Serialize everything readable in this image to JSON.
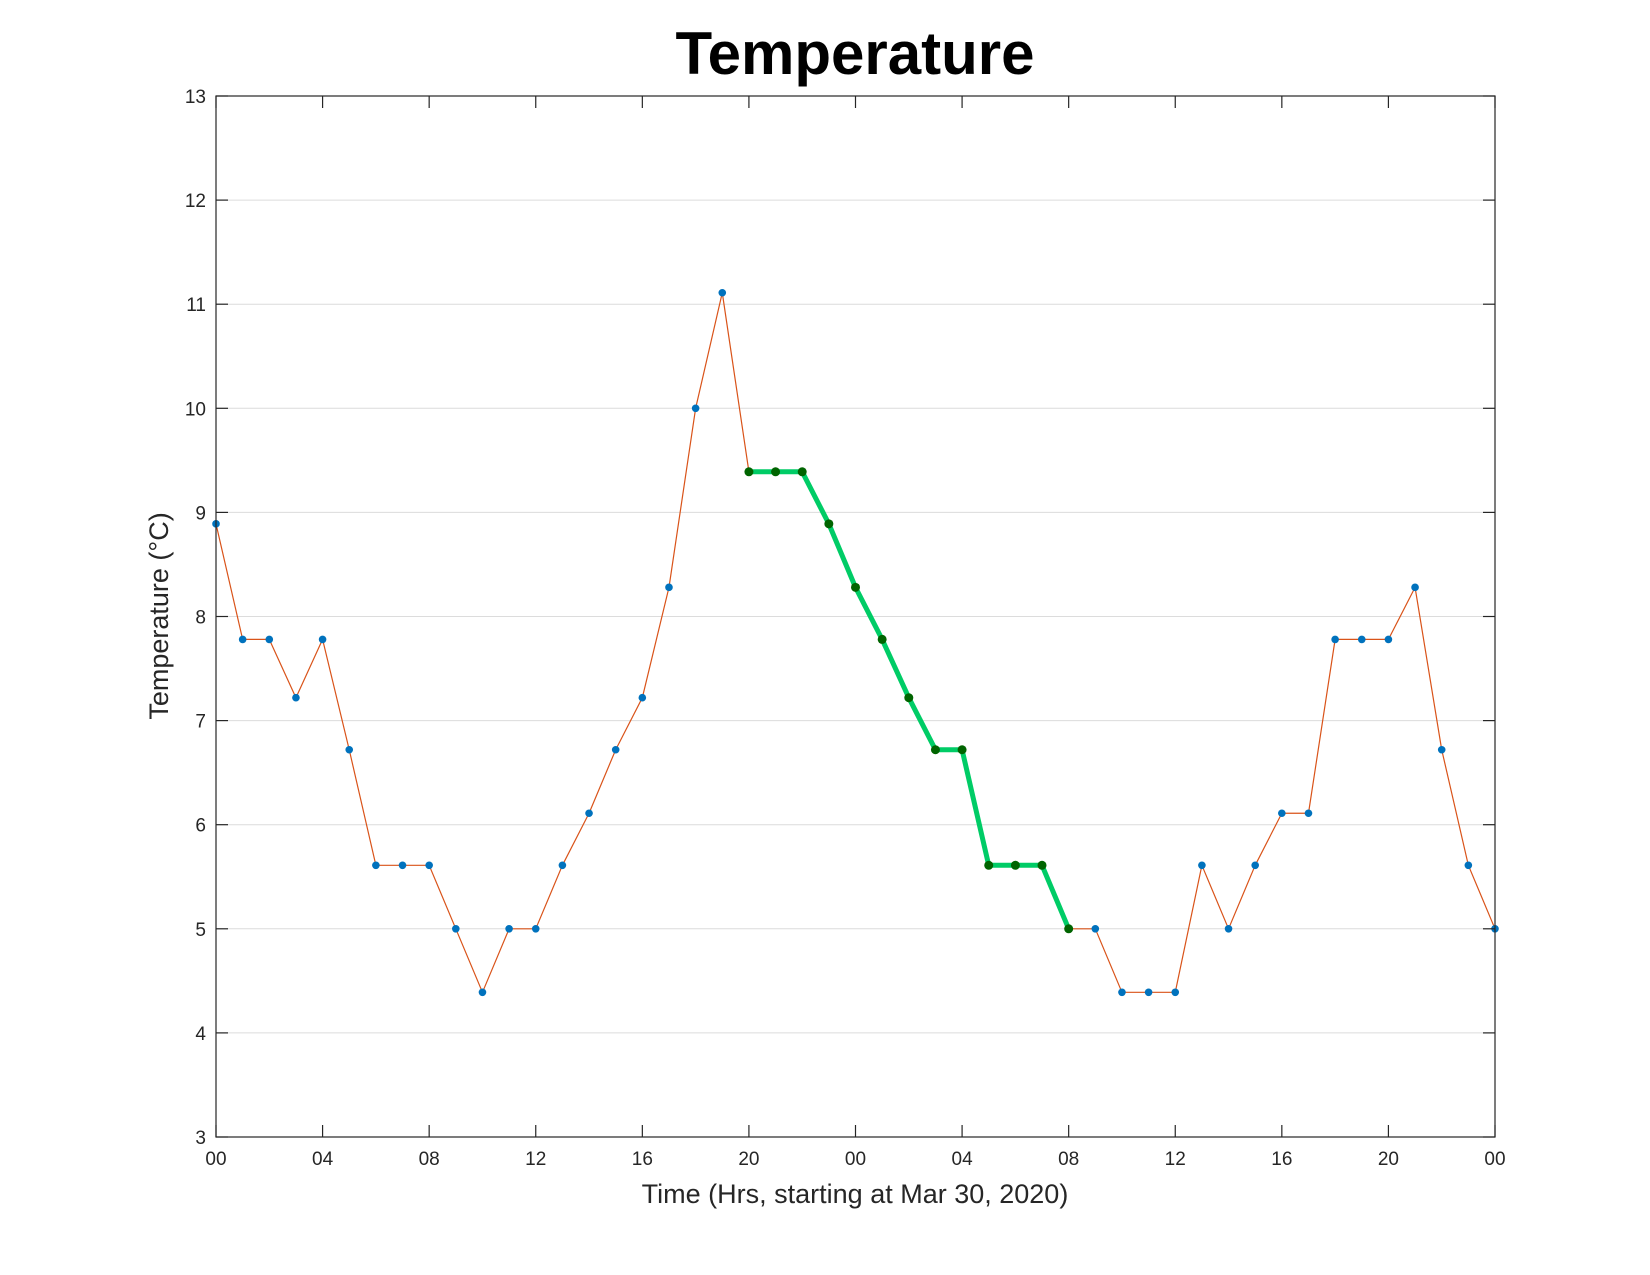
{
  "chart_data": {
    "type": "line",
    "title": "Temperature",
    "xlabel": "Time (Hrs, starting at Mar 30, 2020)",
    "ylabel": "Temperature (°C)",
    "x_start": "2020-03-30 00:00",
    "x_step_hours": 1,
    "xlim_hours": [
      0,
      48
    ],
    "ylim": [
      3,
      13
    ],
    "yticks": [
      3,
      4,
      5,
      6,
      7,
      8,
      9,
      10,
      11,
      12,
      13
    ],
    "xtick_labels": [
      "00",
      "04",
      "08",
      "12",
      "16",
      "20",
      "00",
      "04",
      "08",
      "12",
      "16",
      "20",
      "00"
    ],
    "grid": "y-major",
    "series": [
      {
        "color": "#d95319",
        "marker_color": "#0072bd",
        "values": [
          8.89,
          7.78,
          7.78,
          7.22,
          7.78,
          6.72,
          5.61,
          5.61,
          5.61,
          5.0,
          4.39,
          5.0,
          5.0,
          5.61,
          6.11,
          6.72,
          7.22,
          8.28,
          10.0,
          11.11,
          9.39,
          9.39,
          9.39,
          8.89,
          8.28,
          7.78,
          7.22,
          6.72,
          6.72,
          5.61,
          5.61,
          5.61,
          5.0,
          5.0,
          4.39,
          4.39,
          4.39,
          5.61,
          5.0,
          5.61,
          6.11,
          6.11,
          7.78,
          7.78,
          7.78,
          8.28,
          6.72,
          5.61,
          5.0
        ]
      },
      {
        "color": "#00cc66",
        "marker_color": "#006400",
        "highlight_start_index": 20,
        "values": [
          9.39,
          9.39,
          9.39,
          8.89,
          8.28,
          7.78,
          7.22,
          6.72,
          6.72,
          5.61,
          5.61,
          5.61,
          5.0
        ]
      }
    ]
  }
}
